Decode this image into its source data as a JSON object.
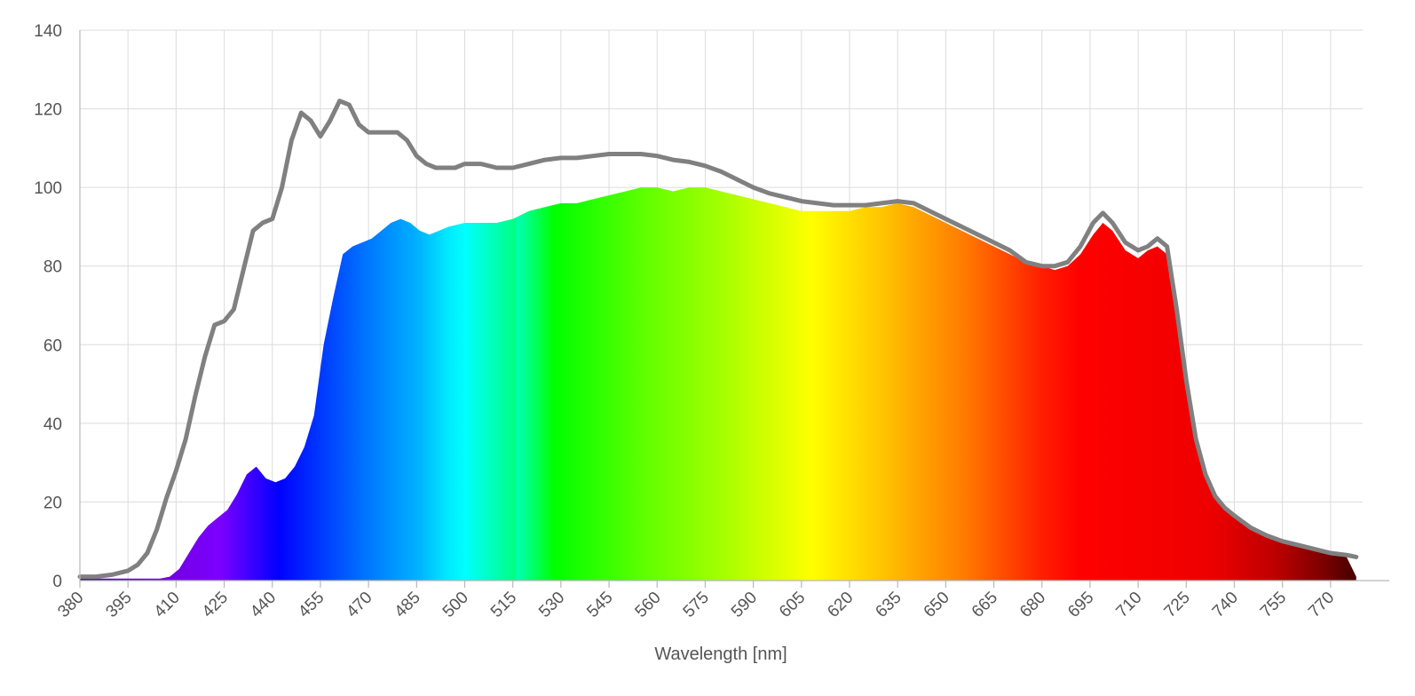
{
  "chart_data": {
    "type": "area",
    "xlabel": "Wavelength [nm]",
    "ylabel": "",
    "xlim": [
      380,
      780
    ],
    "ylim": [
      0,
      140
    ],
    "grid": true,
    "legend": "none",
    "x_ticks": [
      380,
      395,
      410,
      425,
      440,
      455,
      470,
      485,
      500,
      515,
      530,
      545,
      560,
      575,
      590,
      605,
      620,
      635,
      650,
      665,
      680,
      695,
      710,
      725,
      740,
      755,
      770
    ],
    "y_ticks": [
      0,
      20,
      40,
      60,
      80,
      100,
      120,
      140
    ],
    "series": [
      {
        "style": "filled spectrum-colored area",
        "x": [
          380,
          385,
          390,
          395,
          400,
          405,
          408,
          411,
          414,
          417,
          420,
          423,
          426,
          429,
          432,
          435,
          438,
          441,
          444,
          447,
          450,
          453,
          456,
          459,
          462,
          465,
          468,
          471,
          474,
          477,
          480,
          483,
          486,
          489,
          492,
          495,
          500,
          505,
          510,
          515,
          520,
          525,
          530,
          535,
          540,
          545,
          550,
          555,
          560,
          565,
          570,
          575,
          580,
          585,
          590,
          595,
          600,
          605,
          610,
          615,
          620,
          625,
          630,
          635,
          640,
          645,
          650,
          655,
          660,
          665,
          670,
          675,
          680,
          684,
          688,
          692,
          696,
          699,
          702,
          706,
          710,
          713,
          716,
          719,
          722,
          725,
          728,
          731,
          734,
          737,
          740,
          745,
          750,
          755,
          760,
          765,
          770,
          775,
          778
        ],
        "y": [
          0.5,
          0.5,
          0.5,
          0.5,
          0.5,
          0.5,
          1,
          3,
          7,
          11,
          14,
          16,
          18,
          22,
          27,
          29,
          26,
          25,
          26,
          29,
          34,
          42,
          60,
          72,
          83,
          85,
          86,
          87,
          89,
          91,
          92,
          91,
          89,
          88,
          89,
          90,
          91,
          91,
          91,
          92,
          94,
          95,
          96,
          96,
          97,
          98,
          99,
          100,
          100,
          99,
          100,
          100,
          99,
          98,
          97,
          96,
          95,
          94,
          94,
          94,
          94,
          95,
          95,
          96,
          95,
          93,
          91,
          89,
          87,
          85,
          83,
          81,
          80,
          79,
          80,
          83,
          88,
          91,
          89,
          84,
          82,
          84,
          85,
          83,
          68,
          50,
          35,
          26,
          21,
          18,
          16,
          13,
          11,
          9.5,
          8.5,
          7.5,
          6.5,
          6,
          1
        ]
      },
      {
        "style": "gray outline",
        "x": [
          380,
          385,
          390,
          395,
          398,
          401,
          404,
          407,
          410,
          413,
          416,
          419,
          422,
          425,
          428,
          431,
          434,
          437,
          440,
          443,
          446,
          449,
          452,
          455,
          458,
          461,
          464,
          467,
          470,
          473,
          476,
          479,
          482,
          485,
          488,
          491,
          494,
          497,
          500,
          505,
          510,
          515,
          520,
          525,
          530,
          535,
          540,
          545,
          550,
          555,
          560,
          565,
          570,
          575,
          580,
          585,
          590,
          595,
          600,
          605,
          610,
          615,
          620,
          625,
          630,
          635,
          640,
          645,
          650,
          655,
          660,
          665,
          670,
          675,
          680,
          684,
          688,
          692,
          696,
          699,
          702,
          706,
          710,
          713,
          716,
          719,
          722,
          725,
          728,
          731,
          734,
          737,
          740,
          745,
          750,
          755,
          760,
          765,
          770,
          775,
          778
        ],
        "y": [
          1,
          1,
          1.5,
          2.5,
          4,
          7,
          13,
          21,
          28,
          36,
          47,
          57,
          65,
          66,
          69,
          79,
          89,
          91,
          92,
          100,
          112,
          119,
          117,
          113,
          117,
          122,
          121,
          116,
          114,
          114,
          114,
          114,
          112,
          108,
          106,
          105,
          105,
          105,
          106,
          106,
          105,
          105,
          106,
          107,
          107.5,
          107.5,
          108,
          108.5,
          108.5,
          108.5,
          108,
          107,
          106.5,
          105.5,
          104,
          102,
          100,
          98.5,
          97.5,
          96.5,
          96,
          95.5,
          95.5,
          95.5,
          96,
          96.5,
          96,
          94,
          92,
          90,
          88,
          86,
          84,
          81,
          80,
          80,
          81,
          85,
          91,
          93.5,
          91,
          86,
          84,
          85,
          87,
          85,
          69,
          51,
          36,
          27,
          21.5,
          18.5,
          16.5,
          13.5,
          11.5,
          10,
          9,
          8,
          7,
          6.5,
          6
        ]
      }
    ]
  }
}
